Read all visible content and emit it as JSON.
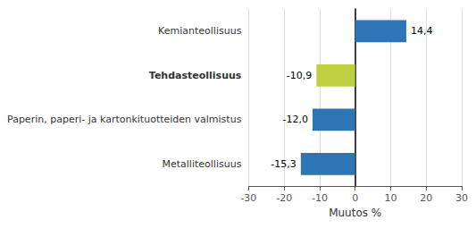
{
  "chart_data": {
    "type": "bar",
    "orientation": "horizontal",
    "categories": [
      "Metalliteollisuus",
      "Paperin, paperi- ja kartonkituotteiden valmistus",
      "Tehdasteollisuus",
      "Kemianteollisuus"
    ],
    "values": [
      -15.3,
      -12.0,
      -10.9,
      14.4
    ],
    "value_labels": [
      "-15,3",
      "-12,0",
      "-10,9",
      "14,4"
    ],
    "colors": [
      "#2e75b6",
      "#2e75b6",
      "#bed040",
      "#2e75b6"
    ],
    "xlabel": "Muutos %",
    "xlim": [
      -30,
      30
    ],
    "xticks": [
      -30,
      -20,
      -10,
      0,
      10,
      20,
      30
    ],
    "grid": true,
    "data_labels": true
  }
}
